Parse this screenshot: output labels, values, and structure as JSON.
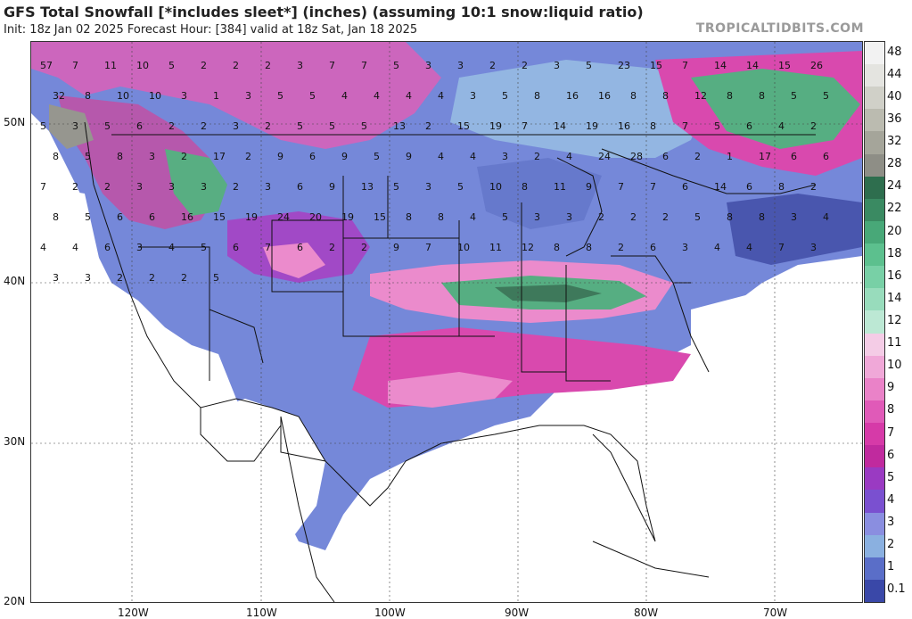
{
  "header": {
    "title": "GFS Total Snowfall [*includes sleet*] (inches) (assuming 10:1 snow:liquid ratio)",
    "subtitle": "Init: 18z Jan 02 2025   Forecast Hour: [384]   valid at 18z Sat, Jan 18 2025",
    "brand": "TROPICALTIDBITS.COM"
  },
  "colorbar": {
    "labels": [
      "48",
      "44",
      "40",
      "36",
      "32",
      "28",
      "24",
      "22",
      "20",
      "18",
      "16",
      "14",
      "12",
      "11",
      "10",
      "9",
      "8",
      "7",
      "6",
      "5",
      "4",
      "3",
      "2",
      "1",
      "0.1"
    ],
    "colors": [
      "#f2f2f2",
      "#e4e4e0",
      "#d0d0c8",
      "#bbbbb0",
      "#a5a59a",
      "#8e8e86",
      "#2e6e4e",
      "#3a8a62",
      "#48a878",
      "#5cc08e",
      "#78d0a6",
      "#98dcbc",
      "#bce8d4",
      "#f4cce6",
      "#f0a8d8",
      "#ea82c8",
      "#e05ab8",
      "#d63aa8",
      "#c02a9e",
      "#9a3ac2",
      "#7a50d0",
      "#8a8ee0",
      "#8ab0e0",
      "#5a6ec8",
      "#3a48a8"
    ]
  },
  "axes": {
    "lat_labels": [
      "50N",
      "40N",
      "30N",
      "20N"
    ],
    "lon_labels": [
      "120W",
      "110W",
      "100W",
      "90W",
      "80W",
      "70W"
    ]
  },
  "snow_labels": [
    "57",
    "7",
    "11",
    "10",
    "5",
    "2",
    "2",
    "2",
    "3",
    "7",
    "7",
    "5",
    "3",
    "3",
    "2",
    "2",
    "3",
    "5",
    "23",
    "15",
    "7",
    "14",
    "14",
    "15",
    "26",
    "32",
    "8",
    "10",
    "10",
    "3",
    "1",
    "3",
    "5",
    "5",
    "4",
    "4",
    "4",
    "4",
    "3",
    "5",
    "8",
    "16",
    "16",
    "8",
    "8",
    "12",
    "8",
    "8",
    "5",
    "5",
    "5",
    "3",
    "5",
    "6",
    "2",
    "2",
    "3",
    "2",
    "5",
    "5",
    "5",
    "13",
    "2",
    "15",
    "19",
    "7",
    "14",
    "19",
    "16",
    "8",
    "7",
    "5",
    "6",
    "4",
    "2",
    "8",
    "5",
    "8",
    "3",
    "2",
    "17",
    "2",
    "9",
    "6",
    "9",
    "5",
    "9",
    "4",
    "4",
    "3",
    "2",
    "4",
    "24",
    "28",
    "6",
    "2",
    "1",
    "17",
    "6",
    "6",
    "7",
    "2",
    "2",
    "3",
    "3",
    "3",
    "2",
    "3",
    "6",
    "9",
    "13",
    "5",
    "3",
    "5",
    "10",
    "8",
    "11",
    "9",
    "7",
    "7",
    "6",
    "14",
    "6",
    "8",
    "2",
    "8",
    "5",
    "6",
    "6",
    "16",
    "15",
    "19",
    "24",
    "20",
    "19",
    "15",
    "8",
    "8",
    "4",
    "5",
    "3",
    "3",
    "2",
    "2",
    "2",
    "5",
    "8",
    "8",
    "3",
    "4",
    "4",
    "4",
    "6",
    "3",
    "4",
    "5",
    "6",
    "7",
    "6",
    "2",
    "2",
    "9",
    "7",
    "10",
    "11",
    "12",
    "8",
    "8",
    "2",
    "6",
    "3",
    "4",
    "4",
    "7",
    "3",
    "3",
    "3",
    "2",
    "2",
    "2",
    "5"
  ]
}
